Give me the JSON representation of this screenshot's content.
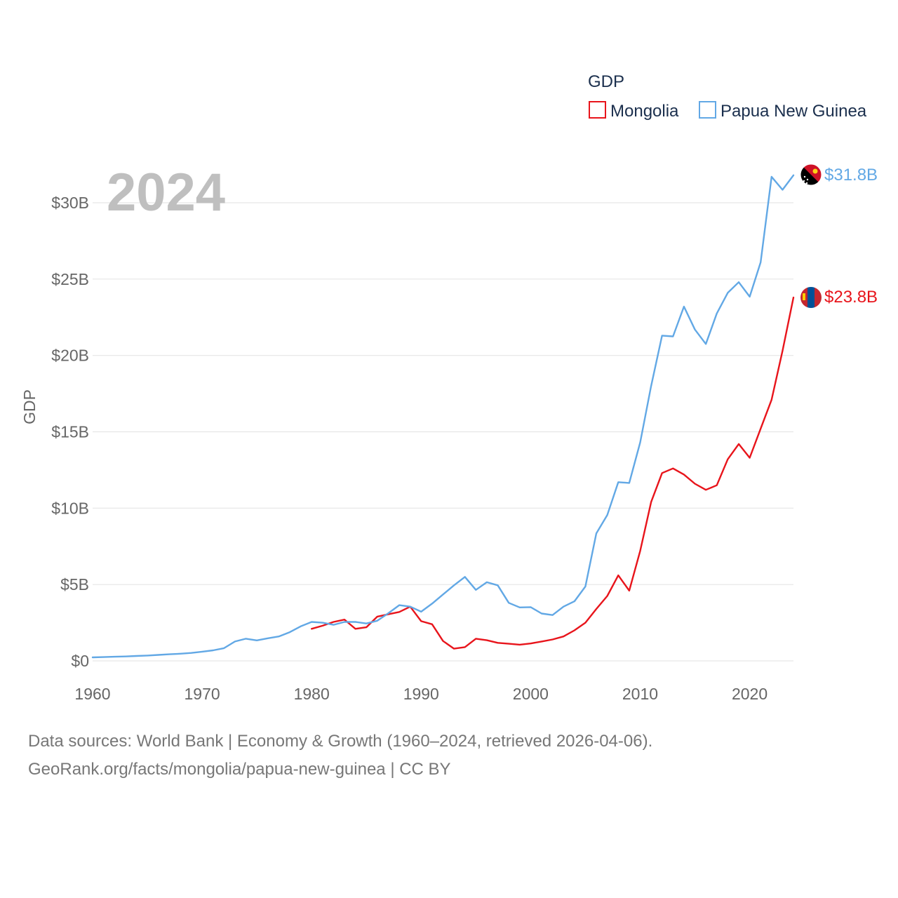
{
  "chart_data": {
    "type": "line",
    "title": "",
    "legend_title": "GDP",
    "year_label": "2024",
    "xlabel": "",
    "ylabel": "GDP",
    "xlim": [
      1960,
      2024
    ],
    "ylim": [
      0,
      32.5
    ],
    "x_ticks": [
      1960,
      1970,
      1980,
      1990,
      2000,
      2010,
      2020
    ],
    "y_ticks": [
      {
        "value": 0,
        "label": "$0"
      },
      {
        "value": 5,
        "label": "$5B"
      },
      {
        "value": 10,
        "label": "$10B"
      },
      {
        "value": 15,
        "label": "$15B"
      },
      {
        "value": 20,
        "label": "$20B"
      },
      {
        "value": 25,
        "label": "$25B"
      },
      {
        "value": 30,
        "label": "$30B"
      }
    ],
    "units": "billion USD",
    "series": [
      {
        "name": "Mongolia",
        "color": "#e8141b",
        "end_label": "$23.8B",
        "x": [
          1980,
          1981,
          1982,
          1983,
          1984,
          1985,
          1986,
          1987,
          1988,
          1989,
          1990,
          1991,
          1992,
          1993,
          1994,
          1995,
          1996,
          1997,
          1998,
          1999,
          2000,
          2001,
          2002,
          2003,
          2004,
          2005,
          2006,
          2007,
          2008,
          2009,
          2010,
          2011,
          2012,
          2013,
          2014,
          2015,
          2016,
          2017,
          2018,
          2019,
          2020,
          2021,
          2022,
          2023,
          2024
        ],
        "values": [
          2.1,
          2.3,
          2.55,
          2.7,
          2.1,
          2.2,
          2.9,
          3.05,
          3.2,
          3.55,
          2.6,
          2.4,
          1.3,
          0.8,
          0.9,
          1.45,
          1.35,
          1.18,
          1.12,
          1.06,
          1.14,
          1.27,
          1.4,
          1.6,
          2.0,
          2.5,
          3.4,
          4.25,
          5.6,
          4.6,
          7.2,
          10.4,
          12.3,
          12.6,
          12.2,
          11.6,
          11.2,
          11.5,
          13.2,
          14.2,
          13.3,
          15.2,
          17.1,
          20.3,
          23.8
        ]
      },
      {
        "name": "Papua New Guinea",
        "color": "#62a8e5",
        "end_label": "$31.8B",
        "x": [
          1960,
          1961,
          1962,
          1963,
          1964,
          1965,
          1966,
          1967,
          1968,
          1969,
          1970,
          1971,
          1972,
          1973,
          1974,
          1975,
          1976,
          1977,
          1978,
          1979,
          1980,
          1981,
          1982,
          1983,
          1984,
          1985,
          1986,
          1987,
          1988,
          1989,
          1990,
          1991,
          1992,
          1993,
          1994,
          1995,
          1996,
          1997,
          1998,
          1999,
          2000,
          2001,
          2002,
          2003,
          2004,
          2005,
          2006,
          2007,
          2008,
          2009,
          2010,
          2011,
          2012,
          2013,
          2014,
          2015,
          2016,
          2017,
          2018,
          2019,
          2020,
          2021,
          2022,
          2023,
          2024
        ],
        "values": [
          0.23,
          0.25,
          0.27,
          0.29,
          0.32,
          0.35,
          0.39,
          0.43,
          0.47,
          0.52,
          0.6,
          0.69,
          0.83,
          1.27,
          1.45,
          1.34,
          1.48,
          1.6,
          1.88,
          2.26,
          2.55,
          2.5,
          2.36,
          2.55,
          2.55,
          2.45,
          2.63,
          3.12,
          3.65,
          3.55,
          3.22,
          3.75,
          4.35,
          4.95,
          5.5,
          4.65,
          5.15,
          4.95,
          3.8,
          3.5,
          3.52,
          3.1,
          3.0,
          3.55,
          3.9,
          4.87,
          8.35,
          9.55,
          11.7,
          11.65,
          14.3,
          18.0,
          21.3,
          21.25,
          23.2,
          21.7,
          20.75,
          22.75,
          24.1,
          24.8,
          23.85,
          26.1,
          31.7,
          30.85,
          31.8
        ]
      }
    ]
  },
  "footer": {
    "line1": "Data sources: World Bank | Economy & Growth (1960–2024, retrieved 2026-04-06).",
    "line2": "GeoRank.org/facts/mongolia/papua-new-guinea | CC BY"
  },
  "flags": {
    "mongolia": "mongolia-flag-icon",
    "papua_new_guinea": "papua-new-guinea-flag-icon"
  }
}
